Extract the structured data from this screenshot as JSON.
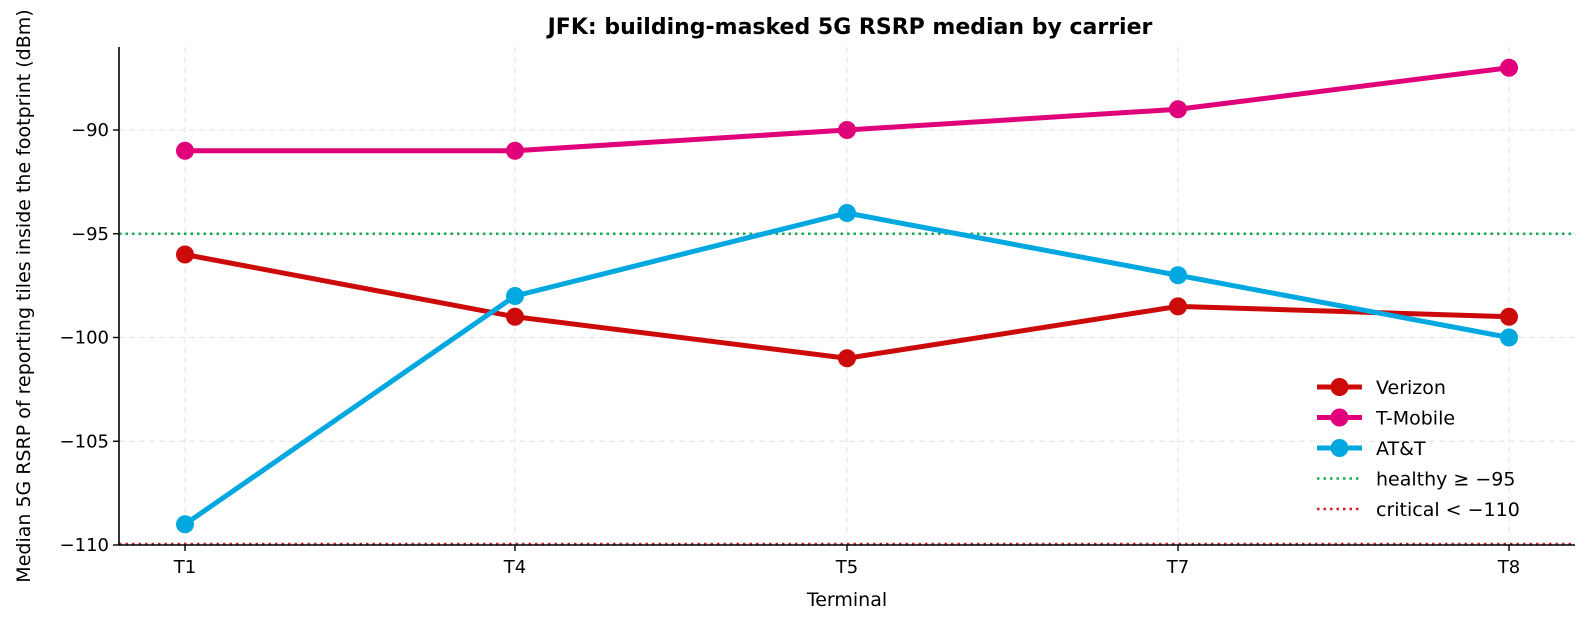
{
  "chart_data": {
    "type": "line",
    "title": "JFK: building-masked 5G RSRP median by carrier",
    "xlabel": "Terminal",
    "ylabel": "Median 5G RSRP of reporting tiles inside the footprint (dBm)",
    "categories": [
      "T1",
      "T4",
      "T5",
      "T7",
      "T8"
    ],
    "ylim": [
      -110,
      -86
    ],
    "yticks": [
      -110,
      -105,
      -100,
      -95,
      -90
    ],
    "ytick_labels": [
      "−110",
      "−105",
      "−100",
      "−95",
      "−90"
    ],
    "grid": true,
    "legend_position": "lower-right",
    "series": [
      {
        "name": "Verizon",
        "color": "#cc0a0a",
        "values": [
          -96,
          -99,
          -101,
          -98.5,
          -99
        ]
      },
      {
        "name": "T-Mobile",
        "color": "#e0007a",
        "values": [
          -91,
          -91,
          -90,
          -89,
          -87
        ]
      },
      {
        "name": "AT&T",
        "color": "#00a8e0",
        "values": [
          -109,
          -98,
          -94,
          -97,
          -100
        ]
      }
    ],
    "reference_lines": [
      {
        "label": "healthy ≥ −95",
        "value": -95,
        "color": "#1aa85a"
      },
      {
        "label": "critical < −110",
        "value": -110,
        "color": "#d11a2a"
      }
    ]
  }
}
